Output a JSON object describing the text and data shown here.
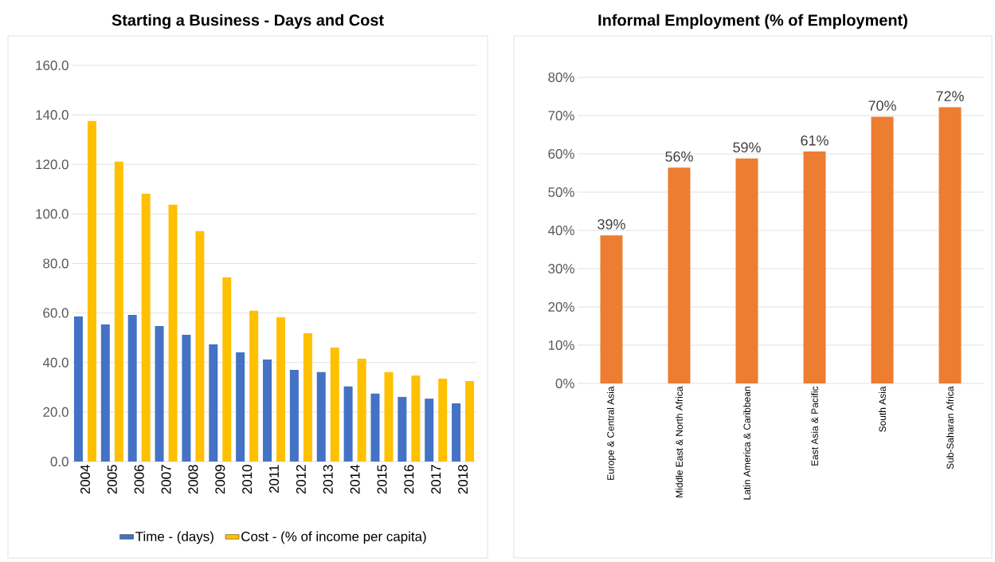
{
  "chart_data": [
    {
      "type": "bar",
      "title": "Starting a Business - Days and Cost",
      "categories": [
        "2004",
        "2005",
        "2006",
        "2007",
        "2008",
        "2009",
        "2010",
        "2011",
        "2012",
        "2013",
        "2014",
        "2015",
        "2016",
        "2017",
        "2018"
      ],
      "series": [
        {
          "name": "Time - (days)",
          "color": "#4472c4",
          "values": [
            58.6,
            55.4,
            59.2,
            54.7,
            51.2,
            47.3,
            44.1,
            41.2,
            37.0,
            36.1,
            30.3,
            27.4,
            26.1,
            25.4,
            23.5
          ]
        },
        {
          "name": "Cost - (% of income per capita)",
          "color": "#ffc000",
          "values": [
            137.5,
            121.1,
            108.2,
            103.7,
            93.0,
            74.4,
            60.9,
            58.3,
            51.8,
            46.0,
            41.5,
            36.1,
            34.8,
            33.5,
            32.5
          ]
        }
      ],
      "ylim": [
        0,
        160
      ],
      "yticks": [
        {
          "value": 0,
          "label": "0.0"
        },
        {
          "value": 20,
          "label": "20.0"
        },
        {
          "value": 40,
          "label": "40.0"
        },
        {
          "value": 60,
          "label": "60.0"
        },
        {
          "value": 80,
          "label": "80.0"
        },
        {
          "value": 100,
          "label": "100.0"
        },
        {
          "value": 120,
          "label": "120.0"
        },
        {
          "value": 140,
          "label": "140.0"
        },
        {
          "value": 160,
          "label": "160.0"
        }
      ],
      "grid": "y",
      "legend": "bottom"
    },
    {
      "type": "bar",
      "title": "Informal Employment (% of Employment)",
      "categories": [
        "Europe & Central Asia",
        "Middle East & North Africa",
        "Latin America & Caribbean",
        "East Asia & Pacific",
        "South Asia",
        "Sub-Saharan Africa"
      ],
      "values": [
        38.7,
        56.4,
        58.8,
        60.6,
        69.7,
        72.2
      ],
      "color": "#ed7d31",
      "value_labels": [
        "39%",
        "56%",
        "59%",
        "61%",
        "70%",
        "72%"
      ],
      "ylim": [
        0,
        80
      ],
      "yticks": [
        {
          "value": 0,
          "label": "0%"
        },
        {
          "value": 10,
          "label": "10%"
        },
        {
          "value": 20,
          "label": "20%"
        },
        {
          "value": 30,
          "label": "30%"
        },
        {
          "value": 40,
          "label": "40%"
        },
        {
          "value": 50,
          "label": "50%"
        },
        {
          "value": 60,
          "label": "60%"
        },
        {
          "value": 70,
          "label": "70%"
        },
        {
          "value": 80,
          "label": "80%"
        }
      ],
      "grid": "y"
    }
  ]
}
